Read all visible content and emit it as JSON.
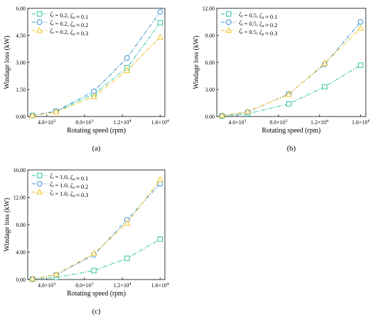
{
  "chart_data": [
    {
      "type": "line",
      "panel_label": "(a)",
      "xlabel": "Rotating speed (rpm)",
      "ylabel": "Windage loss (kW)",
      "xlim": [
        2000,
        16500
      ],
      "ylim": [
        0,
        6
      ],
      "x_ticks": [
        4000,
        8000,
        12000,
        16000
      ],
      "x_tick_labels": [
        [
          "4.0×10",
          "3"
        ],
        [
          "8.0×10",
          "3"
        ],
        [
          "1.2×10",
          "4"
        ],
        [
          "1.6×10",
          "4"
        ]
      ],
      "y_ticks": [
        0,
        1.5,
        3,
        4.5,
        6
      ],
      "y_tick_labels": [
        "0.00",
        "1.50",
        "3.00",
        "4.50",
        "6.00"
      ],
      "legend_position": "top-left",
      "x": [
        2500,
        5000,
        9000,
        12500,
        16000
      ],
      "series": [
        {
          "name": "ζr = 0.2, ζα ≈ 0.1",
          "color": "#2dc3a0",
          "marker": "square",
          "values": [
            0.05,
            0.28,
            1.25,
            2.7,
            5.2
          ]
        },
        {
          "name": "ζr = 0.2, ζα ≈ 0.2",
          "color": "#3a8fd1",
          "marker": "circle",
          "values": [
            0.06,
            0.3,
            1.4,
            3.25,
            5.8
          ]
        },
        {
          "name": "ζr = 0.2, ζα ≈ 0.3",
          "color": "#f1c21f",
          "marker": "triangle",
          "values": [
            0.05,
            0.25,
            1.1,
            2.55,
            4.4
          ]
        }
      ]
    },
    {
      "type": "line",
      "panel_label": "(b)",
      "xlabel": "Rotating speed (rpm)",
      "ylabel": "Windage loss (kW)",
      "xlim": [
        2000,
        16500
      ],
      "ylim": [
        0,
        12
      ],
      "x_ticks": [
        4000,
        8000,
        12000,
        16000
      ],
      "x_tick_labels": [
        [
          "4.0×10",
          "3"
        ],
        [
          "8.0×10",
          "3"
        ],
        [
          "1.2×10",
          "4"
        ],
        [
          "1.6×10",
          "4"
        ]
      ],
      "y_ticks": [
        0,
        3,
        6,
        9,
        12
      ],
      "y_tick_labels": [
        "0.00",
        "3.00",
        "6.00",
        "9.00",
        "12.00"
      ],
      "legend_position": "top-left",
      "x": [
        2500,
        5000,
        9000,
        12500,
        16000
      ],
      "series": [
        {
          "name": "ζr = 0.5, ζα ≈ 0.1",
          "color": "#2dc3a0",
          "marker": "square",
          "values": [
            0.05,
            0.3,
            1.4,
            3.3,
            5.7
          ]
        },
        {
          "name": "ζr = 0.5, ζα ≈ 0.2",
          "color": "#3a8fd1",
          "marker": "circle",
          "values": [
            0.1,
            0.5,
            2.5,
            5.8,
            10.5
          ]
        },
        {
          "name": "ζr = 0.5, ζα ≈ 0.3",
          "color": "#f1c21f",
          "marker": "triangle",
          "values": [
            0.1,
            0.55,
            2.45,
            5.9,
            9.8
          ]
        }
      ]
    },
    {
      "type": "line",
      "panel_label": "(c)",
      "xlabel": "Rotating speed (rpm)",
      "ylabel": "Windage loss (kW)",
      "xlim": [
        2000,
        16500
      ],
      "ylim": [
        0,
        16
      ],
      "x_ticks": [
        4000,
        8000,
        12000,
        16000
      ],
      "x_tick_labels": [
        [
          "4.0×10",
          "3"
        ],
        [
          "8.0×10",
          "3"
        ],
        [
          "1.2×10",
          "4"
        ],
        [
          "1.6×10",
          "4"
        ]
      ],
      "y_ticks": [
        0,
        4,
        8,
        12,
        16
      ],
      "y_tick_labels": [
        "0.00",
        "4.00",
        "8.00",
        "12.00",
        "16.00"
      ],
      "legend_position": "top-left",
      "x": [
        2500,
        5000,
        9000,
        12500,
        16000
      ],
      "series": [
        {
          "name": "ζr = 1.0, ζα ≈ 0.1",
          "color": "#2dc3a0",
          "marker": "square",
          "values": [
            0.05,
            0.3,
            1.3,
            3.1,
            5.9
          ]
        },
        {
          "name": "ζr = 1.0, ζα ≈ 0.2",
          "color": "#3a8fd1",
          "marker": "circle",
          "values": [
            0.1,
            0.7,
            3.6,
            8.7,
            14.0
          ]
        },
        {
          "name": "ζr = 1.0, ζα ≈ 0.3",
          "color": "#f1c21f",
          "marker": "triangle",
          "values": [
            0.1,
            0.75,
            3.8,
            8.2,
            14.6
          ]
        }
      ]
    }
  ]
}
